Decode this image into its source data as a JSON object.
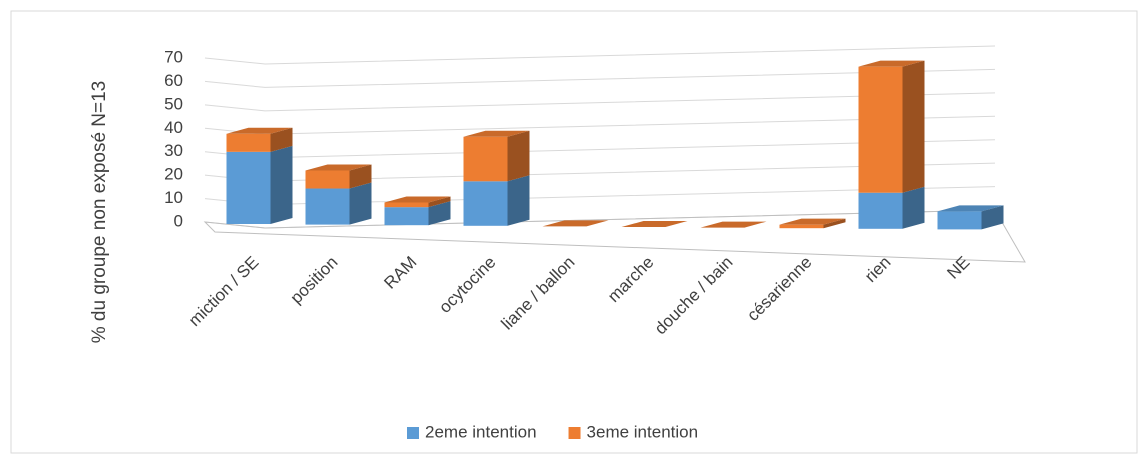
{
  "chart_data": {
    "type": "bar3d_stacked",
    "y_label": "% du groupe non exposé N=13",
    "categories": [
      "miction / SE",
      "position",
      "RAM",
      "ocytocine",
      "liane / ballon",
      "marche",
      "douche / bain",
      "césarienne",
      "rien",
      "NE"
    ],
    "series": [
      {
        "name": "2eme intention",
        "color": "#5b9bd5",
        "values": [
          30.8,
          15.4,
          7.7,
          19,
          0,
          0,
          0,
          0,
          15.4,
          7.7
        ]
      },
      {
        "name": "3eme intention",
        "color": "#ed7d31",
        "values": [
          7.7,
          7.7,
          2,
          19,
          0,
          0,
          0,
          1.5,
          53.8,
          0
        ]
      }
    ],
    "ylim": [
      0,
      70
    ],
    "yticks": [
      0,
      10,
      20,
      30,
      40,
      50,
      60,
      70
    ],
    "grid": true,
    "legend": "bottom"
  }
}
